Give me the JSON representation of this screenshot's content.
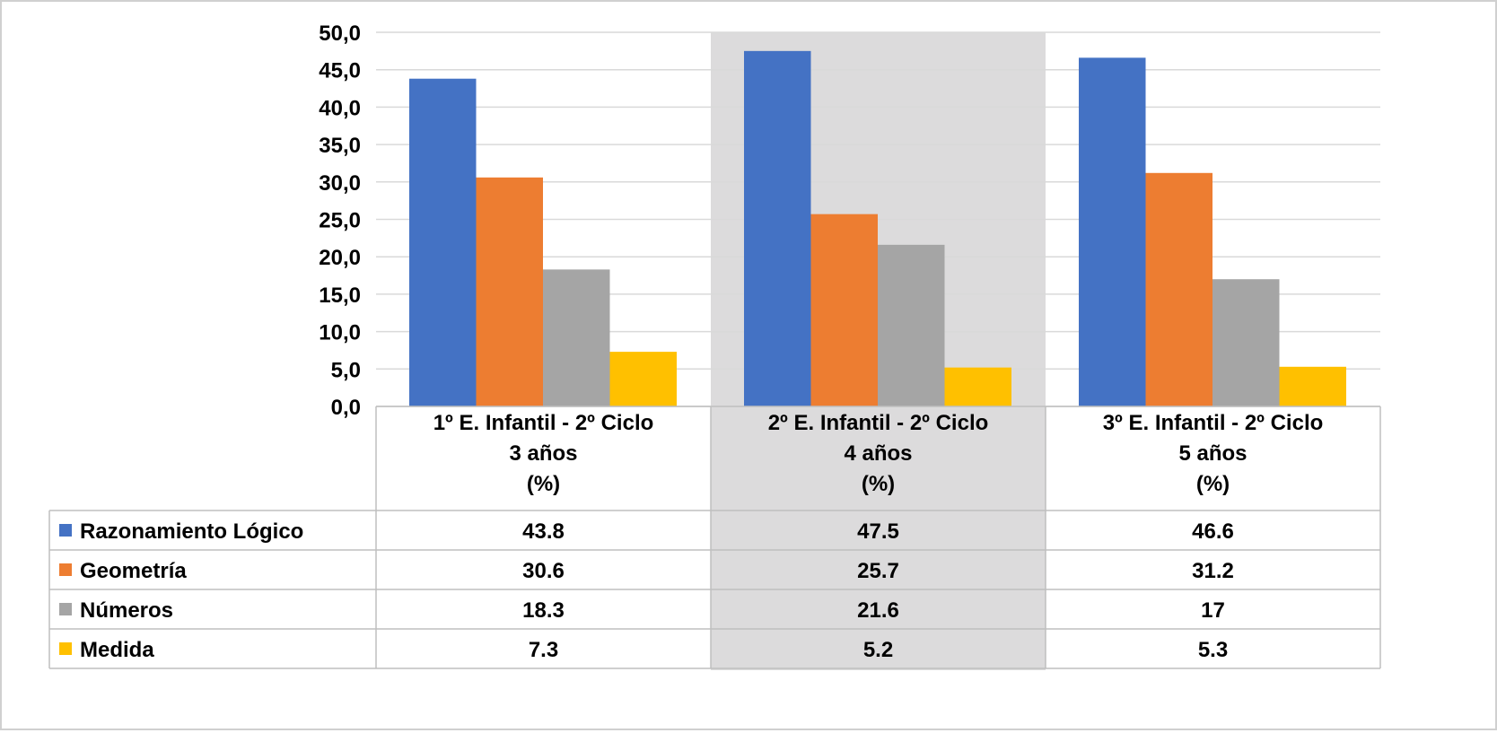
{
  "chart_data": {
    "type": "bar",
    "categories": [
      [
        "1º E. Infantil -  2º Ciclo",
        "3 años",
        "(%)"
      ],
      [
        "2º E. Infantil -  2º Ciclo",
        "4 años",
        "(%)"
      ],
      [
        "3º E. Infantil -  2º Ciclo",
        "5 años",
        "(%)"
      ]
    ],
    "series": [
      {
        "name": "Razonamiento Lógico",
        "color": "#4472C4",
        "values": [
          43.8,
          47.5,
          46.6
        ],
        "labels": [
          "43.8",
          "47.5",
          "46.6"
        ]
      },
      {
        "name": "Geometría",
        "color": "#ED7D31",
        "values": [
          30.6,
          25.7,
          31.2
        ],
        "labels": [
          "30.6",
          "25.7",
          "31.2"
        ]
      },
      {
        "name": "Números",
        "color": "#A5A5A5",
        "values": [
          18.3,
          21.6,
          17
        ],
        "labels": [
          "18.3",
          "21.6",
          "17"
        ]
      },
      {
        "name": "Medida",
        "color": "#FFC000",
        "values": [
          7.3,
          5.2,
          5.3
        ],
        "labels": [
          "7.3",
          "5.2",
          "5.3"
        ]
      }
    ],
    "y_ticks": [
      "0,0",
      "5,0",
      "10,0",
      "15,0",
      "20,0",
      "25,0",
      "30,0",
      "35,0",
      "40,0",
      "45,0",
      "50,0"
    ],
    "ylim": [
      0,
      50
    ],
    "grid": true,
    "highlighted_category": 1,
    "highlight_color": "#DCDBDC",
    "legend": "data-table"
  }
}
